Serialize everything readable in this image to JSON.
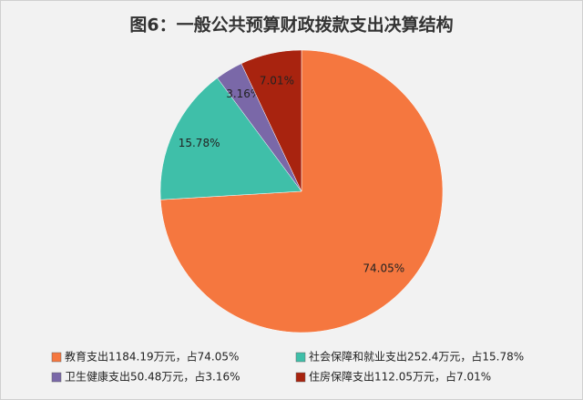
{
  "chart_data": {
    "type": "pie",
    "title": "图6：一般公共预算财政拨款支出决算结构",
    "categories": [
      "教育支出1184.19万元，占74.05%",
      "社会保障和就业支出252.4万元，占15.78%",
      "卫生健康支出50.48万元，占3.16%",
      "住房保障支出112.05万元，占7.01%"
    ],
    "values": [
      74.05,
      15.78,
      3.16,
      7.01
    ],
    "value_labels": [
      "74.05%",
      "15.78%",
      "3.16%",
      "7.01%"
    ],
    "colors": [
      "#f5773f",
      "#3fbfa9",
      "#7a68a8",
      "#a8230f"
    ],
    "legend": "bottom"
  }
}
